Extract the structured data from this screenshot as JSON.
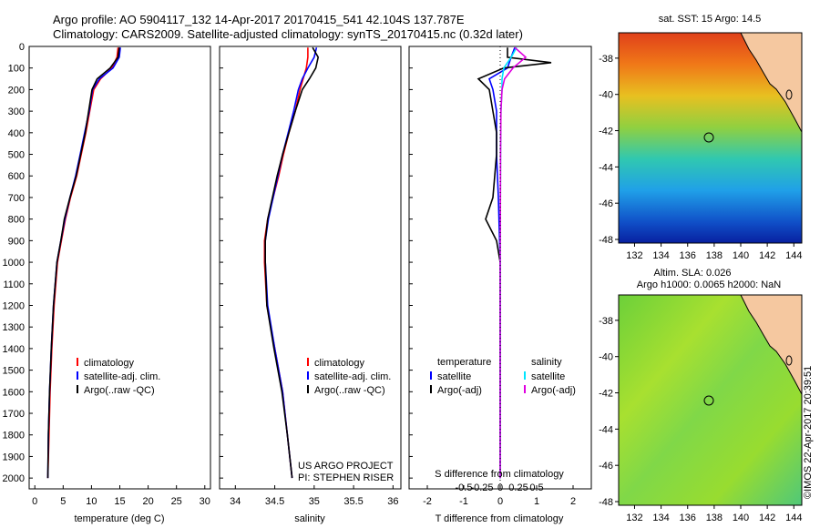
{
  "header": {
    "line1": "Argo profile: AO 5904117_132 14-Apr-2017 20170415_541 42.104S 137.787E",
    "line2": "Climatology: CARS2009. Satellite-adjusted climatology: synTS_20170415.nc (0.32d later)"
  },
  "panels": {
    "temperature": {
      "xlabel": "temperature (deg C)",
      "xticks": [
        "0",
        "5",
        "10",
        "15",
        "20",
        "25",
        "30"
      ],
      "legend": [
        "climatology",
        "satellite-adj. clim.",
        "Argo(..raw -QC)"
      ]
    },
    "salinity": {
      "xlabel": "salinity",
      "xticks": [
        "34",
        "34.5",
        "35",
        "35.5",
        "36"
      ],
      "legend": [
        "climatology",
        "satellite-adj. clim.",
        "Argo(..raw -QC)"
      ],
      "credit1": "US ARGO PROJECT",
      "credit2": "PI: STEPHEN RISER"
    },
    "difference": {
      "xlabel": "T difference from climatology",
      "toplabel": "S difference from climatology",
      "top_xticks": [
        "-0.5",
        "-0.25",
        "0",
        "0.25",
        "0.5"
      ],
      "xticks": [
        "-2",
        "-1",
        "0",
        "1",
        "2"
      ],
      "leg_temp_title": "temperature",
      "leg_sal_title": "salinity",
      "leg_temp": [
        "satellite",
        "Argo(-adj)"
      ],
      "leg_sal": [
        "satellite",
        "Argo(-adj)"
      ]
    }
  },
  "depth_ticks": [
    "0",
    "100",
    "200",
    "300",
    "400",
    "500",
    "600",
    "700",
    "800",
    "900",
    "1000",
    "1100",
    "1200",
    "1300",
    "1400",
    "1500",
    "1600",
    "1700",
    "1800",
    "1900",
    "2000"
  ],
  "maps": {
    "sst_title": "sat. SST: 15 Argo: 14.5",
    "sla_title1": "Altim. SLA: 0.026",
    "sla_title2": "Argo h1000: 0.0065 h2000: NaN",
    "lon_ticks": [
      "132",
      "134",
      "136",
      "138",
      "140",
      "142",
      "144"
    ],
    "lat_ticks": [
      "-38",
      "-40",
      "-42",
      "-44",
      "-46",
      "-48"
    ],
    "stamp": "©IMOS 22-Apr-2017 20:39:51"
  },
  "colors": {
    "climatology": "#ff0000",
    "satellite": "#0000ff",
    "argo": "#000000",
    "sal_satellite": "#00e5ff",
    "sal_argo": "#e000e0",
    "land": "#f5c8a0"
  },
  "chart_data": [
    {
      "type": "line",
      "title": "",
      "xlabel": "temperature (deg C)",
      "ylabel": "",
      "xlim": [
        -1,
        31
      ],
      "ylim": [
        2050,
        0
      ],
      "series": [
        {
          "name": "climatology",
          "depth": [
            5,
            50,
            100,
            150,
            200,
            300,
            400,
            500,
            600,
            700,
            800,
            900,
            1000,
            1200,
            1400,
            1600,
            1800,
            2000
          ],
          "values": [
            14.7,
            14.5,
            13.6,
            11.6,
            10.4,
            9.7,
            9.0,
            8.2,
            7.4,
            6.3,
            5.4,
            4.7,
            4.0,
            3.4,
            3.0,
            2.7,
            2.5,
            2.3
          ]
        },
        {
          "name": "satellite-adj. clim.",
          "depth": [
            5,
            50,
            100,
            150,
            200,
            300,
            400,
            500,
            600,
            700,
            800,
            900,
            1000,
            1200,
            1400,
            1600,
            1800,
            2000
          ],
          "values": [
            15.1,
            14.9,
            13.8,
            11.4,
            10.2,
            9.6,
            8.8,
            8.0,
            7.2,
            6.2,
            5.3,
            4.6,
            3.9,
            3.3,
            2.9,
            2.6,
            2.4,
            2.3
          ]
        },
        {
          "name": "Argo(..raw -QC)",
          "depth": [
            5,
            50,
            100,
            150,
            200,
            300,
            400,
            500,
            600,
            700,
            800,
            900,
            1000,
            1200,
            1400,
            1600,
            1800,
            2000
          ],
          "values": [
            14.9,
            14.7,
            13.3,
            11.0,
            10.1,
            9.5,
            8.9,
            8.1,
            7.3,
            6.2,
            5.2,
            4.6,
            3.9,
            3.3,
            2.9,
            2.6,
            2.4,
            2.3
          ]
        }
      ]
    },
    {
      "type": "line",
      "title": "",
      "xlabel": "salinity",
      "ylabel": "",
      "xlim": [
        33.8,
        36.1
      ],
      "ylim": [
        2050,
        0
      ],
      "series": [
        {
          "name": "climatology",
          "depth": [
            5,
            50,
            100,
            150,
            200,
            300,
            400,
            500,
            600,
            700,
            800,
            900,
            1000,
            1200,
            1400,
            1600,
            1800,
            2000
          ],
          "values": [
            34.92,
            34.92,
            34.9,
            34.86,
            34.82,
            34.76,
            34.68,
            34.61,
            34.55,
            34.48,
            34.41,
            34.37,
            34.37,
            34.4,
            34.5,
            34.6,
            34.66,
            34.72
          ]
        },
        {
          "name": "satellite-adj. clim.",
          "depth": [
            5,
            50,
            100,
            150,
            200,
            300,
            400,
            500,
            600,
            700,
            800,
            900,
            1000,
            1200,
            1400,
            1600,
            1800,
            2000
          ],
          "values": [
            35.03,
            35.0,
            34.92,
            34.85,
            34.8,
            34.74,
            34.67,
            34.6,
            34.54,
            34.48,
            34.42,
            34.38,
            34.38,
            34.41,
            34.5,
            34.6,
            34.66,
            34.72
          ]
        },
        {
          "name": "Argo(..raw -QC)",
          "depth": [
            5,
            50,
            100,
            150,
            200,
            300,
            400,
            500,
            600,
            700,
            800,
            900,
            1000,
            1200,
            1400,
            1600,
            1800,
            2000
          ],
          "values": [
            34.98,
            35.05,
            35.02,
            34.94,
            34.85,
            34.76,
            34.68,
            34.6,
            34.53,
            34.47,
            34.41,
            34.38,
            34.38,
            34.4,
            34.49,
            34.59,
            34.66,
            34.72
          ]
        }
      ]
    },
    {
      "type": "line",
      "title": "",
      "xlabel": "T difference from climatology",
      "ylabel": "",
      "xlim": [
        -2.5,
        2.5
      ],
      "ylim": [
        2050,
        0
      ],
      "series": [
        {
          "name": "satellite",
          "depth": [
            5,
            50,
            100,
            150,
            200,
            300,
            400,
            500,
            700,
            1000,
            1500,
            2000
          ],
          "values": [
            0.4,
            0.3,
            0.2,
            -0.3,
            -0.2,
            -0.1,
            -0.1,
            -0.1,
            -0.05,
            0,
            0,
            0
          ]
        },
        {
          "name": "Argo(-adj)",
          "depth": [
            5,
            50,
            75,
            100,
            150,
            200,
            300,
            400,
            500,
            700,
            800,
            900,
            1000,
            1500,
            2000
          ],
          "values": [
            0.2,
            0.2,
            1.4,
            0.1,
            -0.6,
            -0.3,
            -0.2,
            -0.1,
            -0.1,
            -0.2,
            -0.4,
            -0.1,
            0,
            0,
            0
          ]
        },
        {
          "name": "satellite",
          "depth": [
            5,
            50,
            100,
            150,
            200,
            300,
            500,
            1000,
            1500,
            2000
          ],
          "values": [
            0.45,
            0.3,
            0.1,
            0.05,
            0.05,
            0.02,
            0.01,
            0,
            0,
            0
          ]
        },
        {
          "name": "Argo(-adj)",
          "depth": [
            5,
            50,
            100,
            150,
            200,
            300,
            500,
            1000,
            1500,
            2000
          ],
          "values": [
            0.4,
            0.7,
            0.35,
            0.12,
            0.05,
            0.02,
            0.01,
            0,
            0,
            0
          ]
        }
      ]
    }
  ]
}
